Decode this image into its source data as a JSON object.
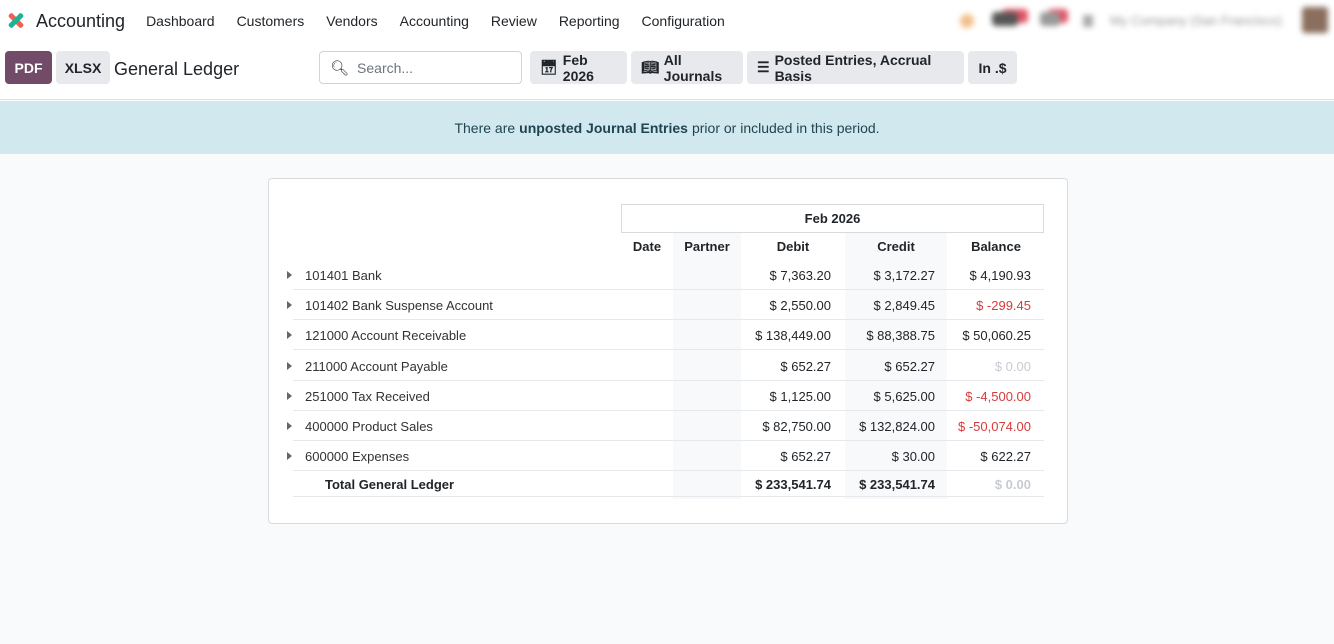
{
  "nav": {
    "app": "Accounting",
    "menu": [
      "Dashboard",
      "Customers",
      "Vendors",
      "Accounting",
      "Review",
      "Reporting",
      "Configuration"
    ],
    "company": "My Company (San Francisco)"
  },
  "toolbar": {
    "pdf": "PDF",
    "xlsx": "XLSX",
    "title": "General Ledger",
    "search_placeholder": "Search...",
    "period": "Feb 2026",
    "journals": "All Journals",
    "options": "Posted Entries, Accrual Basis",
    "currency": "In .$"
  },
  "alert": {
    "pre": "There are",
    "bold": "unposted Journal Entries",
    "post": "prior or included in this period."
  },
  "table": {
    "period": "Feb 2026",
    "columns": [
      "Date",
      "Partner",
      "Debit",
      "Credit",
      "Balance"
    ],
    "rows": [
      {
        "account": "101401 Bank",
        "debit": "$ 7,363.20",
        "credit": "$ 3,172.27",
        "balance": "$ 4,190.93",
        "state": "pos"
      },
      {
        "account": "101402 Bank Suspense Account",
        "debit": "$ 2,550.00",
        "credit": "$ 2,849.45",
        "balance": "$ -299.45",
        "state": "neg"
      },
      {
        "account": "121000 Account Receivable",
        "debit": "$ 138,449.00",
        "credit": "$ 88,388.75",
        "balance": "$ 50,060.25",
        "state": "pos"
      },
      {
        "account": "211000 Account Payable",
        "debit": "$ 652.27",
        "credit": "$ 652.27",
        "balance": "$ 0.00",
        "state": "zero"
      },
      {
        "account": "251000 Tax Received",
        "debit": "$ 1,125.00",
        "credit": "$ 5,625.00",
        "balance": "$ -4,500.00",
        "state": "neg"
      },
      {
        "account": "400000 Product Sales",
        "debit": "$ 82,750.00",
        "credit": "$ 132,824.00",
        "balance": "$ -50,074.00",
        "state": "neg"
      },
      {
        "account": "600000 Expenses",
        "debit": "$ 652.27",
        "credit": "$ 30.00",
        "balance": "$ 622.27",
        "state": "pos"
      }
    ],
    "total": {
      "label": "Total General Ledger",
      "debit": "$ 233,541.74",
      "credit": "$ 233,541.74",
      "balance": "$ 0.00"
    }
  }
}
